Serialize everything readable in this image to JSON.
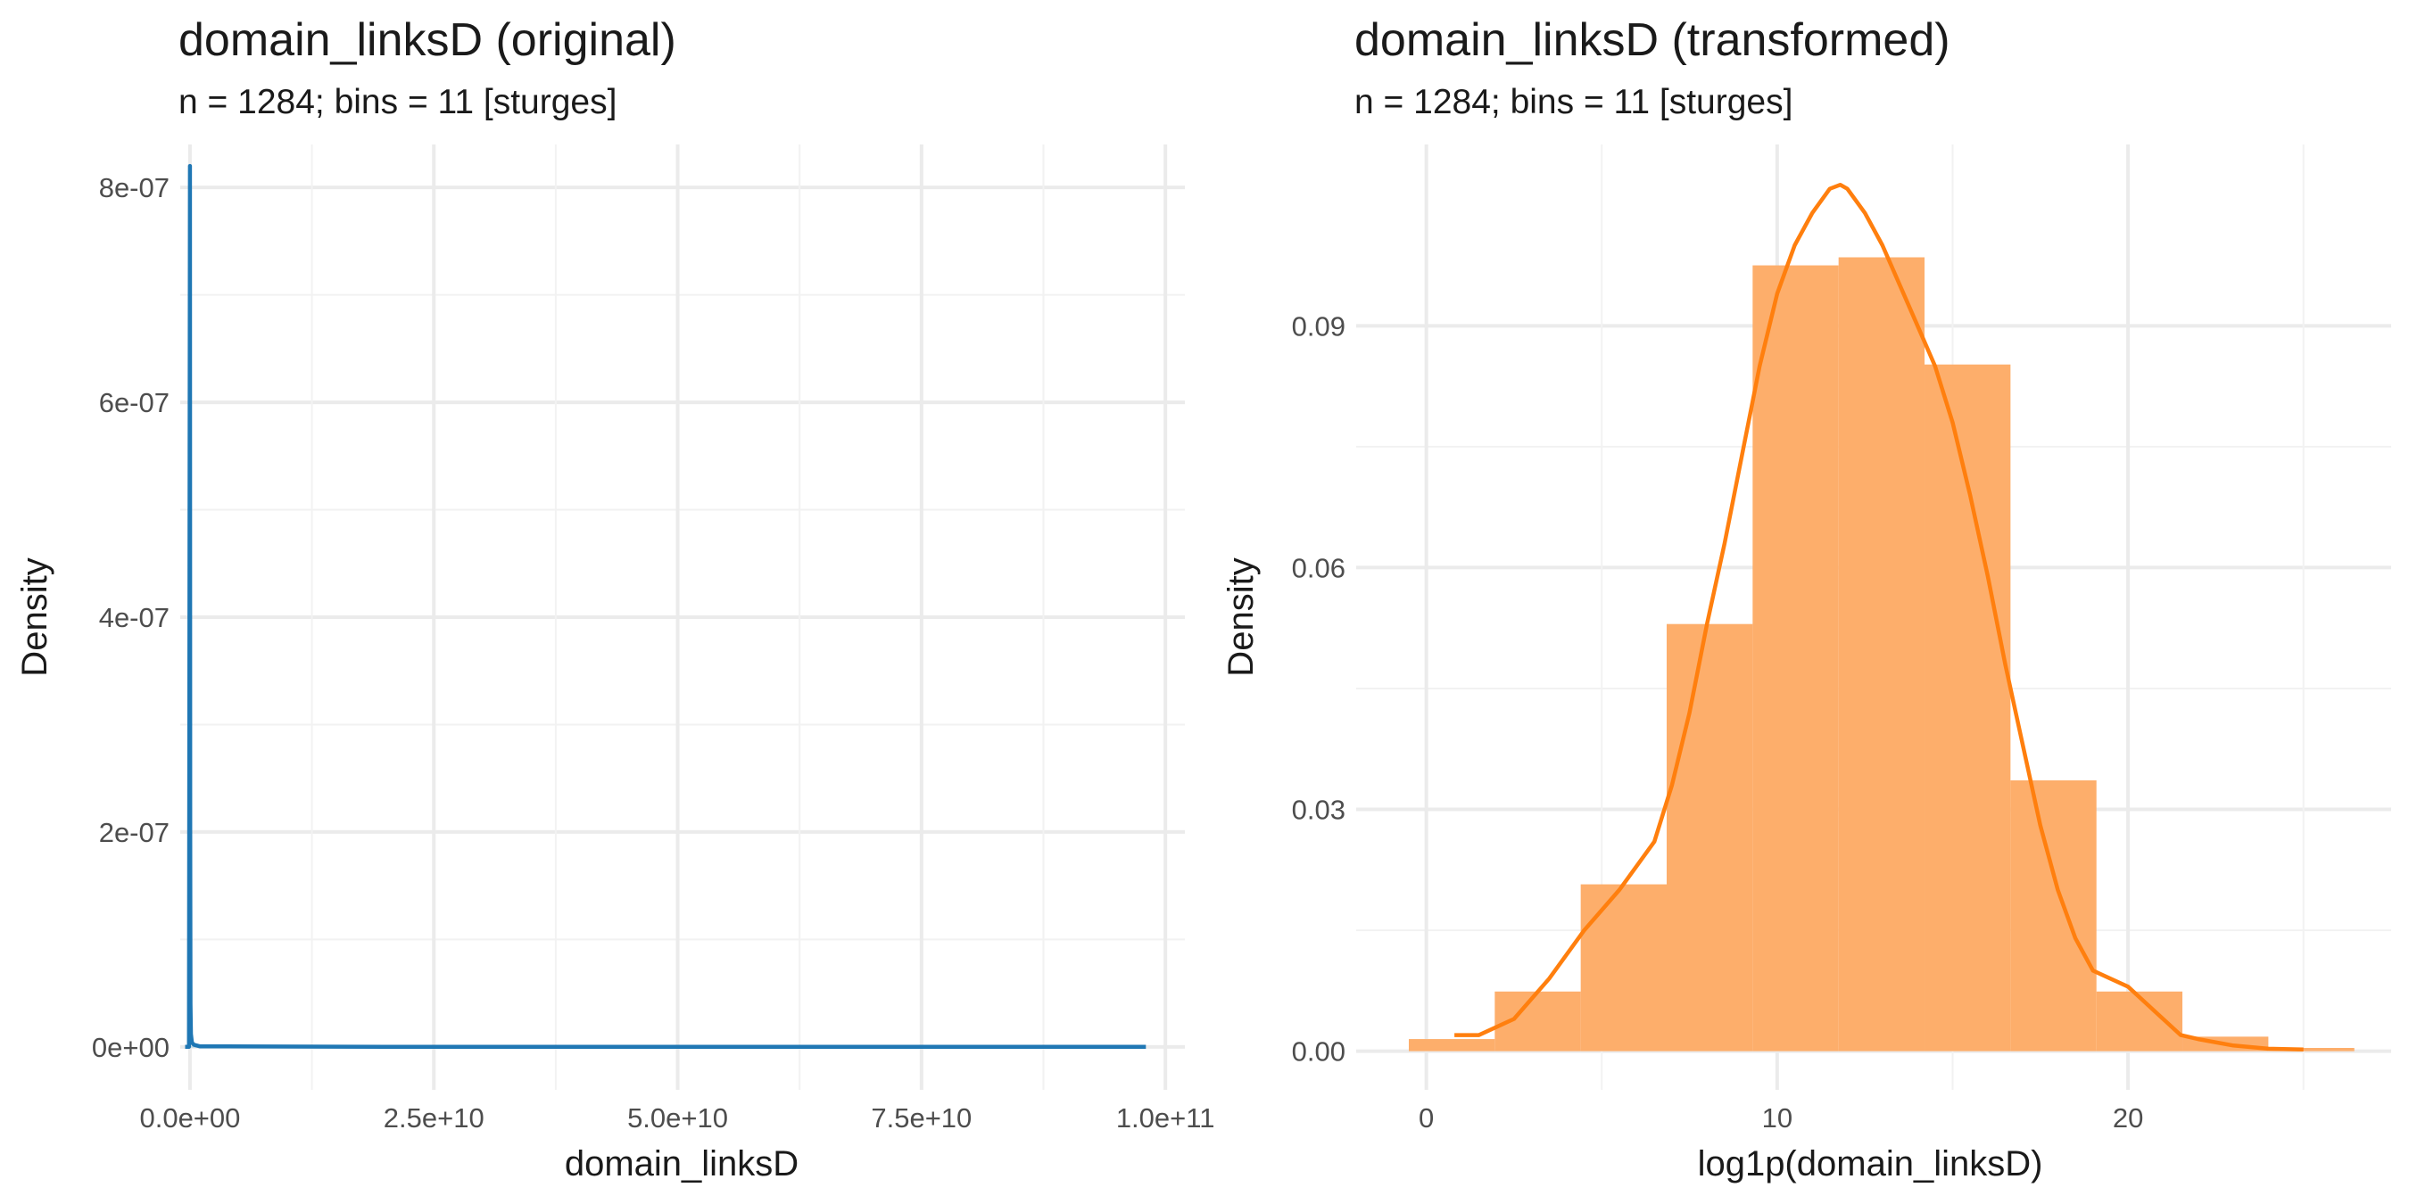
{
  "chart_data": [
    {
      "type": "line",
      "title": "domain_linksD (original)",
      "subtitle": "n = 1284; bins = 11 [sturges]",
      "xlabel": "domain_linksD",
      "ylabel": "Density",
      "xlim": [
        -1000000000,
        102000000000
      ],
      "ylim": [
        -4e-08,
        8.4e-07
      ],
      "x_ticks": [
        0,
        25000000000,
        50000000000,
        75000000000,
        100000000000
      ],
      "x_tick_labels": [
        "0.0e+00",
        "2.5e+10",
        "5.0e+10",
        "7.5e+10",
        "1.0e+11"
      ],
      "y_ticks": [
        0,
        2e-07,
        4e-07,
        6e-07,
        8e-07
      ],
      "y_tick_labels": [
        "0e+00",
        "2e-07",
        "4e-07",
        "6e-07",
        "8e-07"
      ],
      "grid": true,
      "bars": [
        {
          "x0": -500000000,
          "x1": 9500000000,
          "density": 1e-10
        }
      ],
      "series": [
        {
          "color": "#1f77b4",
          "x": [
            -500000000,
            -100000000,
            0,
            5000000,
            20000000,
            50000000,
            100000000,
            200000000,
            400000000,
            1000000000,
            20000000000,
            50000000000,
            98000000000
          ],
          "y": [
            0,
            0,
            8.2e-07,
            6e-07,
            2e-07,
            4e-08,
            1.2e-08,
            4e-09,
            2e-09,
            5e-10,
            0,
            0,
            0
          ]
        }
      ]
    },
    {
      "type": "bar",
      "title": "domain_linksD (transformed)",
      "subtitle": "n = 1284; bins = 11 [sturges]",
      "xlabel": "log1p(domain_linksD)",
      "ylabel": "Density",
      "xlim": [
        -2,
        27.5
      ],
      "ylim": [
        -0.0048,
        0.1125
      ],
      "x_ticks": [
        0,
        10,
        20
      ],
      "x_tick_labels": [
        "0",
        "10",
        "20"
      ],
      "y_ticks": [
        0,
        0.03,
        0.06,
        0.09
      ],
      "y_tick_labels": [
        "0.00",
        "0.03",
        "0.06",
        "0.09"
      ],
      "grid": true,
      "bar_color": "#fdae6b",
      "bars": [
        {
          "x0": -0.5,
          "x1": 1.95,
          "density": 0.0015
        },
        {
          "x0": 1.95,
          "x1": 4.4,
          "density": 0.0074
        },
        {
          "x0": 4.4,
          "x1": 6.85,
          "density": 0.0207
        },
        {
          "x0": 6.85,
          "x1": 9.3,
          "density": 0.053
        },
        {
          "x0": 9.3,
          "x1": 11.75,
          "density": 0.0975
        },
        {
          "x0": 11.75,
          "x1": 14.2,
          "density": 0.0985
        },
        {
          "x0": 14.2,
          "x1": 16.65,
          "density": 0.0852
        },
        {
          "x0": 16.65,
          "x1": 19.1,
          "density": 0.0336
        },
        {
          "x0": 19.1,
          "x1": 21.55,
          "density": 0.0074
        },
        {
          "x0": 21.55,
          "x1": 24.0,
          "density": 0.0018
        },
        {
          "x0": 24.0,
          "x1": 26.45,
          "density": 0.0004
        }
      ],
      "series": [
        {
          "color": "#ff7f0e",
          "x": [
            0.8,
            1.5,
            2.5,
            3.5,
            4.5,
            5.5,
            6.5,
            7.0,
            7.5,
            8.0,
            8.5,
            9.0,
            9.5,
            10.0,
            10.5,
            11.0,
            11.5,
            11.8,
            12.0,
            12.5,
            13.0,
            13.5,
            14.0,
            14.5,
            15.0,
            15.5,
            16.0,
            16.5,
            17.0,
            17.5,
            18.0,
            18.5,
            19.0,
            19.5,
            20.0,
            20.5,
            21.0,
            21.5,
            22.0,
            23.0,
            24.0,
            25.0
          ],
          "y": [
            0.002,
            0.002,
            0.004,
            0.009,
            0.015,
            0.02,
            0.026,
            0.033,
            0.042,
            0.053,
            0.063,
            0.074,
            0.085,
            0.094,
            0.1,
            0.104,
            0.107,
            0.1075,
            0.107,
            0.104,
            0.1,
            0.095,
            0.09,
            0.085,
            0.078,
            0.069,
            0.059,
            0.048,
            0.038,
            0.028,
            0.02,
            0.014,
            0.01,
            0.009,
            0.008,
            0.006,
            0.004,
            0.002,
            0.0015,
            0.0007,
            0.0003,
            0.0002
          ]
        }
      ]
    }
  ]
}
